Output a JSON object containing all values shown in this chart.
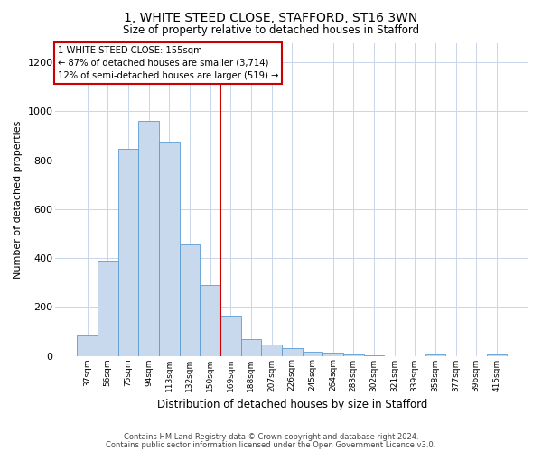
{
  "title": "1, WHITE STEED CLOSE, STAFFORD, ST16 3WN",
  "subtitle": "Size of property relative to detached houses in Stafford",
  "xlabel": "Distribution of detached houses by size in Stafford",
  "ylabel": "Number of detached properties",
  "footer1": "Contains HM Land Registry data © Crown copyright and database right 2024.",
  "footer2": "Contains public sector information licensed under the Open Government Licence v3.0.",
  "annotation_line1": "1 WHITE STEED CLOSE: 155sqm",
  "annotation_line2": "← 87% of detached houses are smaller (3,714)",
  "annotation_line3": "12% of semi-detached houses are larger (519) →",
  "bar_color": "#c8d9ed",
  "bar_edge_color": "#5b9bd5",
  "vline_color": "#cc0000",
  "annotation_box_edge_color": "#cc0000",
  "background_color": "#ffffff",
  "grid_color": "#c8d4e8",
  "categories": [
    "37sqm",
    "56sqm",
    "75sqm",
    "94sqm",
    "113sqm",
    "132sqm",
    "150sqm",
    "169sqm",
    "188sqm",
    "207sqm",
    "226sqm",
    "245sqm",
    "264sqm",
    "283sqm",
    "302sqm",
    "321sqm",
    "339sqm",
    "358sqm",
    "377sqm",
    "396sqm",
    "415sqm"
  ],
  "values": [
    85,
    390,
    845,
    960,
    875,
    455,
    290,
    165,
    70,
    48,
    30,
    18,
    12,
    5,
    2,
    0,
    0,
    7,
    0,
    0,
    5
  ],
  "ylim": [
    0,
    1280
  ],
  "yticks": [
    0,
    200,
    400,
    600,
    800,
    1000,
    1200
  ]
}
